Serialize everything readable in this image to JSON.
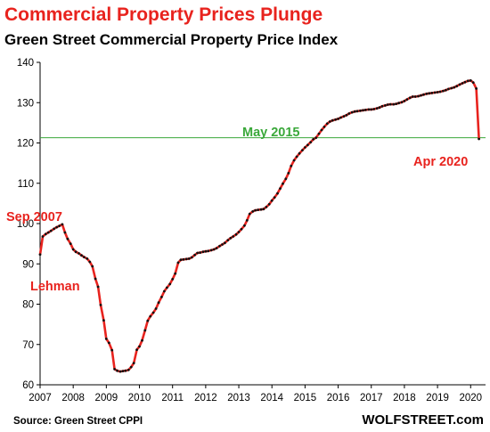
{
  "chart_data": {
    "type": "line",
    "title": "Commercial Property Prices Plunge",
    "subtitle": "Green Street Commercial Property Price Index",
    "x_ticks": [
      "2007",
      "2008",
      "2009",
      "2010",
      "2011",
      "2012",
      "2013",
      "2014",
      "2015",
      "2016",
      "2017",
      "2018",
      "2019",
      "2020"
    ],
    "y_ticks": [
      "60",
      "70",
      "80",
      "90",
      "100",
      "110",
      "120",
      "130",
      "140"
    ],
    "xlim": [
      2007.0,
      2020.45
    ],
    "ylim": [
      60,
      140
    ],
    "grid": false,
    "reference_line": {
      "label": "May 2015",
      "y": 121.3
    },
    "annotations": [
      {
        "text": "Sep 2007"
      },
      {
        "text": "Lehman"
      },
      {
        "text": "Apr 2020"
      }
    ],
    "series": [
      {
        "x": [
          2007.0,
          2007.08,
          2007.17,
          2007.25,
          2007.33,
          2007.42,
          2007.5,
          2007.58,
          2007.67,
          2007.75,
          2007.83,
          2007.92,
          2008.0,
          2008.08,
          2008.17,
          2008.25,
          2008.33,
          2008.42,
          2008.5,
          2008.58,
          2008.67,
          2008.75,
          2008.83,
          2008.92,
          2009.0,
          2009.08,
          2009.17,
          2009.25,
          2009.33,
          2009.42,
          2009.5,
          2009.58,
          2009.67,
          2009.75,
          2009.83,
          2009.92,
          2010.0,
          2010.08,
          2010.17,
          2010.25,
          2010.33,
          2010.42,
          2010.5,
          2010.58,
          2010.67,
          2010.75,
          2010.83,
          2010.92,
          2011.0,
          2011.08,
          2011.17,
          2011.25,
          2011.33,
          2011.42,
          2011.5,
          2011.58,
          2011.67,
          2011.75,
          2011.83,
          2011.92,
          2012.0,
          2012.08,
          2012.17,
          2012.25,
          2012.33,
          2012.42,
          2012.5,
          2012.58,
          2012.67,
          2012.75,
          2012.83,
          2012.92,
          2013.0,
          2013.08,
          2013.17,
          2013.25,
          2013.33,
          2013.42,
          2013.5,
          2013.58,
          2013.67,
          2013.75,
          2013.83,
          2013.92,
          2014.0,
          2014.08,
          2014.17,
          2014.25,
          2014.33,
          2014.42,
          2014.5,
          2014.58,
          2014.67,
          2014.75,
          2014.83,
          2014.92,
          2015.0,
          2015.08,
          2015.17,
          2015.25,
          2015.33,
          2015.42,
          2015.5,
          2015.58,
          2015.67,
          2015.75,
          2015.83,
          2015.92,
          2016.0,
          2016.08,
          2016.17,
          2016.25,
          2016.33,
          2016.42,
          2016.5,
          2016.58,
          2016.67,
          2016.75,
          2016.83,
          2016.92,
          2017.0,
          2017.08,
          2017.17,
          2017.25,
          2017.33,
          2017.42,
          2017.5,
          2017.58,
          2017.67,
          2017.75,
          2017.83,
          2017.92,
          2018.0,
          2018.08,
          2018.17,
          2018.25,
          2018.33,
          2018.42,
          2018.5,
          2018.58,
          2018.67,
          2018.75,
          2018.83,
          2018.92,
          2019.0,
          2019.08,
          2019.17,
          2019.25,
          2019.33,
          2019.42,
          2019.5,
          2019.58,
          2019.67,
          2019.75,
          2019.83,
          2019.92,
          2020.0,
          2020.08,
          2020.17,
          2020.25
        ],
        "y": [
          92.3,
          96.8,
          97.4,
          97.8,
          98.2,
          98.7,
          99.1,
          99.4,
          99.8,
          97.8,
          96.2,
          95.0,
          93.6,
          93.0,
          92.6,
          92.1,
          91.7,
          91.3,
          90.5,
          89.4,
          86.3,
          84.3,
          79.8,
          76.0,
          71.4,
          70.4,
          68.6,
          63.9,
          63.5,
          63.3,
          63.4,
          63.5,
          63.7,
          64.4,
          65.4,
          68.7,
          69.5,
          71.0,
          73.5,
          75.9,
          77.0,
          77.9,
          78.9,
          80.4,
          81.8,
          83.2,
          84.1,
          85.0,
          86.2,
          87.6,
          90.3,
          91.0,
          91.1,
          91.2,
          91.3,
          91.6,
          92.2,
          92.7,
          92.8,
          93.0,
          93.1,
          93.2,
          93.4,
          93.6,
          93.9,
          94.4,
          94.8,
          95.2,
          95.9,
          96.4,
          96.8,
          97.3,
          97.9,
          98.6,
          99.5,
          100.8,
          102.4,
          103.0,
          103.3,
          103.4,
          103.5,
          103.6,
          104.1,
          104.8,
          105.7,
          106.5,
          107.5,
          108.7,
          109.9,
          111.1,
          112.5,
          114.3,
          115.7,
          116.6,
          117.4,
          118.2,
          118.9,
          119.5,
          120.2,
          120.9,
          121.3,
          122.3,
          123.2,
          124.0,
          124.8,
          125.3,
          125.6,
          125.8,
          126.0,
          126.3,
          126.6,
          126.9,
          127.3,
          127.6,
          127.8,
          127.9,
          128.0,
          128.1,
          128.2,
          128.3,
          128.3,
          128.4,
          128.6,
          128.8,
          129.1,
          129.3,
          129.5,
          129.6,
          129.6,
          129.7,
          129.9,
          130.1,
          130.4,
          130.8,
          131.2,
          131.5,
          131.5,
          131.6,
          131.8,
          132.0,
          132.2,
          132.3,
          132.4,
          132.5,
          132.6,
          132.7,
          132.9,
          133.1,
          133.4,
          133.6,
          133.8,
          134.1,
          134.5,
          134.8,
          135.1,
          135.4,
          135.5,
          135.0,
          133.5,
          121.0
        ]
      }
    ],
    "colors": {
      "line": "#e8231e",
      "markers": "#111111",
      "reference": "#3aa83a",
      "axis": "#000000"
    },
    "source": "Source: Green Street CPPI",
    "brand": "WOLFSTREET.com"
  }
}
